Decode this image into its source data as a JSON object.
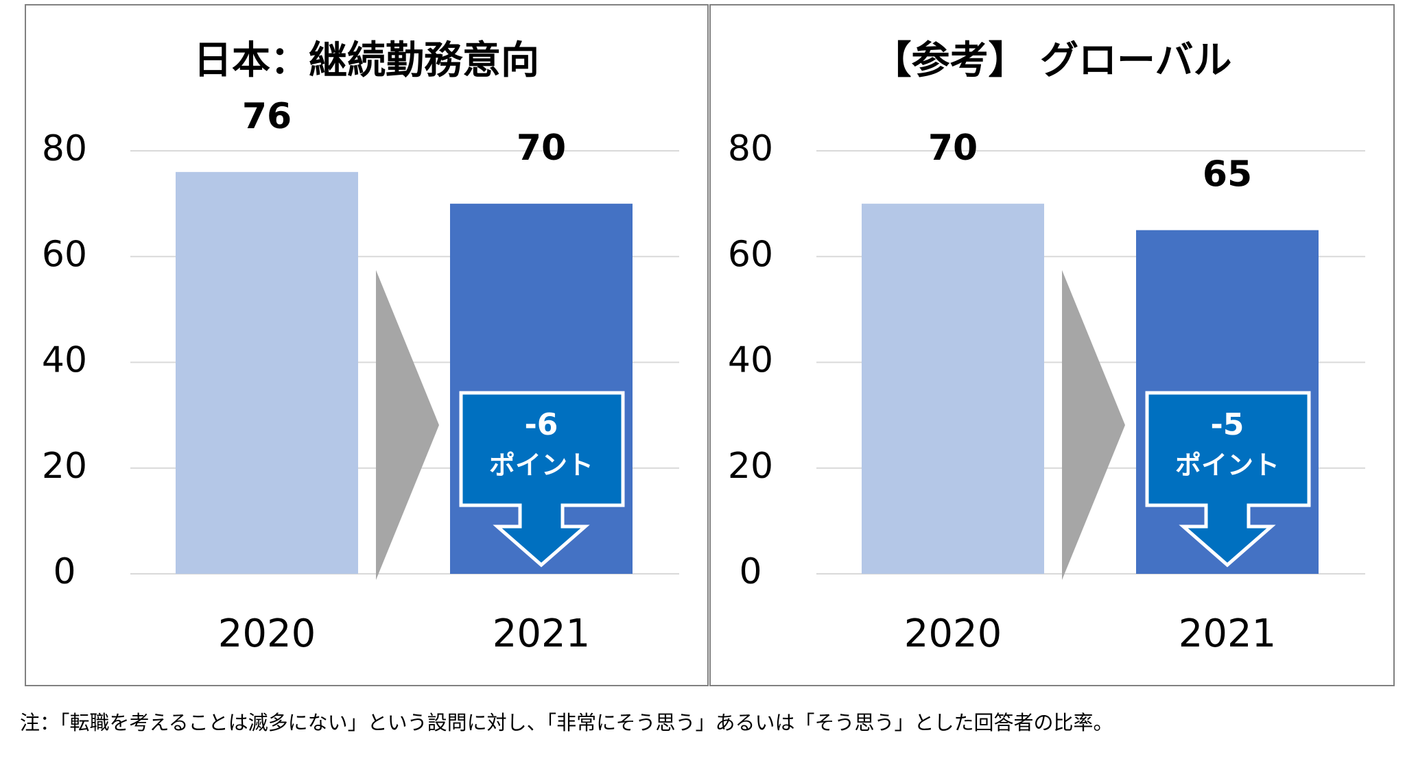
{
  "chart_data": [
    {
      "type": "bar",
      "title": "日本：継続勤務意向",
      "categories": [
        "2020",
        "2021"
      ],
      "values": [
        76,
        70
      ],
      "colors": [
        "#b4c7e7",
        "#4472c4"
      ],
      "ylim": [
        0,
        80
      ],
      "yticks": [
        0,
        20,
        40,
        60,
        80
      ],
      "grid": true,
      "change": -6,
      "change_unit": "ポイント"
    },
    {
      "type": "bar",
      "title": "【参考】 グローバル",
      "categories": [
        "2020",
        "2021"
      ],
      "values": [
        70,
        65
      ],
      "colors": [
        "#b4c7e7",
        "#4472c4"
      ],
      "ylim": [
        0,
        80
      ],
      "yticks": [
        0,
        20,
        40,
        60,
        80
      ],
      "grid": true,
      "change": -5,
      "change_unit": "ポイント"
    }
  ],
  "note": "注：「転職を考えることは滅多にない」という設問に対し、「非常にそう思う」あるいは「そう思う」とした回答者の比率。"
}
